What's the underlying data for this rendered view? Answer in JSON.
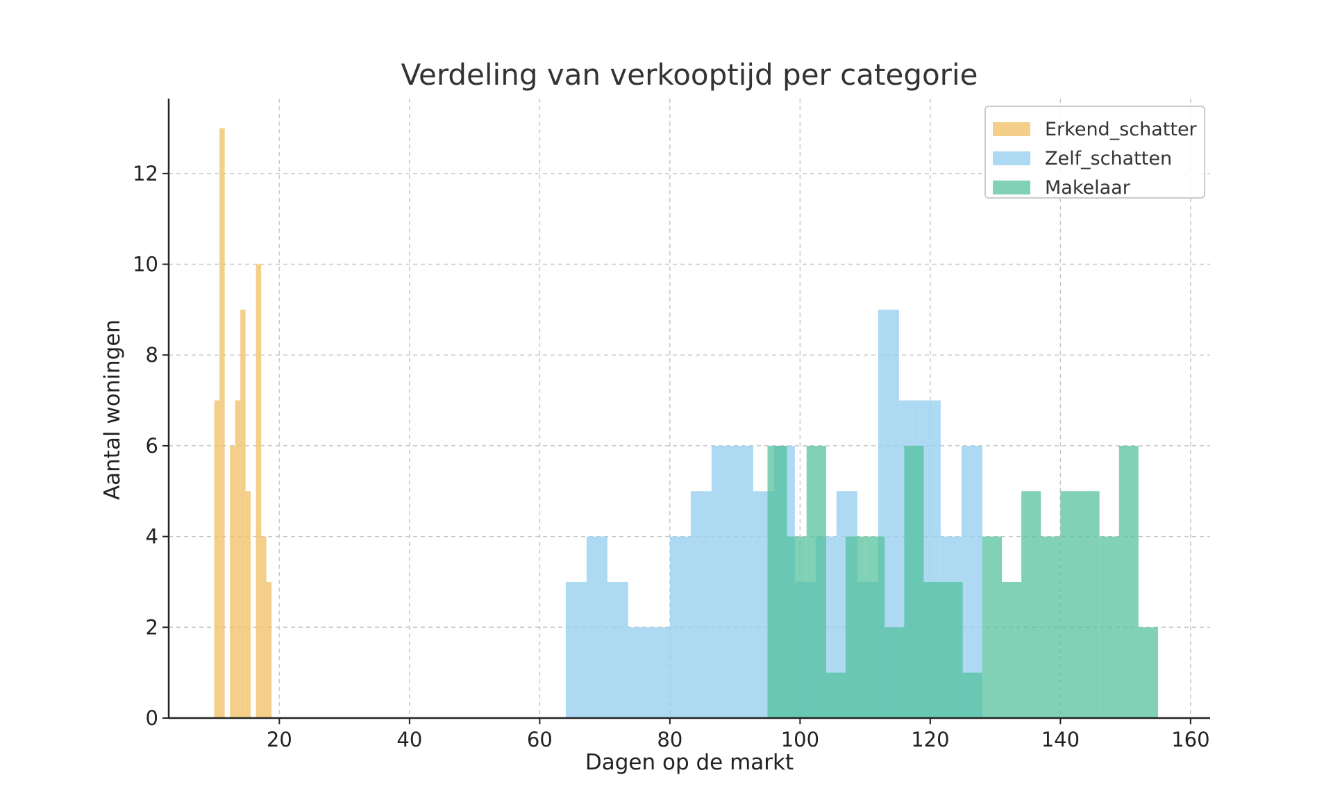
{
  "chart_data": {
    "type": "histogram",
    "title": "Verdeling van verkooptijd per categorie",
    "xlabel": "Dagen op de markt",
    "ylabel": "Aantal woningen",
    "xlim": [
      3,
      163
    ],
    "ylim": [
      0,
      13.65
    ],
    "xticks": [
      20,
      40,
      60,
      80,
      100,
      120,
      140,
      160
    ],
    "yticks": [
      0,
      2,
      4,
      6,
      8,
      10,
      12
    ],
    "grid": true,
    "legend_position": "top-right",
    "series": [
      {
        "name": "Erkend_schatter",
        "color": "#f0c36d",
        "opacity": 0.8,
        "bins": [
          {
            "x0": 10.0,
            "x1": 10.8,
            "count": 7
          },
          {
            "x0": 10.8,
            "x1": 11.6,
            "count": 13
          },
          {
            "x0": 11.6,
            "x1": 12.4,
            "count": 0
          },
          {
            "x0": 12.4,
            "x1": 13.2,
            "count": 6
          },
          {
            "x0": 13.2,
            "x1": 14.0,
            "count": 7
          },
          {
            "x0": 14.0,
            "x1": 14.8,
            "count": 9
          },
          {
            "x0": 14.8,
            "x1": 15.6,
            "count": 5
          },
          {
            "x0": 15.6,
            "x1": 16.4,
            "count": 0
          },
          {
            "x0": 16.4,
            "x1": 17.2,
            "count": 10
          },
          {
            "x0": 17.2,
            "x1": 18.0,
            "count": 4
          },
          {
            "x0": 18.0,
            "x1": 18.8,
            "count": 3
          }
        ]
      },
      {
        "name": "Zelf_schatten",
        "color": "#99d0f0",
        "opacity": 0.8,
        "bins": [
          {
            "x0": 64.0,
            "x1": 67.2,
            "count": 3
          },
          {
            "x0": 67.2,
            "x1": 70.4,
            "count": 4
          },
          {
            "x0": 70.4,
            "x1": 73.6,
            "count": 3
          },
          {
            "x0": 73.6,
            "x1": 76.8,
            "count": 2
          },
          {
            "x0": 76.8,
            "x1": 80.0,
            "count": 2
          },
          {
            "x0": 80.0,
            "x1": 83.2,
            "count": 4
          },
          {
            "x0": 83.2,
            "x1": 86.4,
            "count": 5
          },
          {
            "x0": 86.4,
            "x1": 89.6,
            "count": 6
          },
          {
            "x0": 89.6,
            "x1": 92.8,
            "count": 6
          },
          {
            "x0": 92.8,
            "x1": 96.0,
            "count": 5
          },
          {
            "x0": 96.0,
            "x1": 99.2,
            "count": 6
          },
          {
            "x0": 99.2,
            "x1": 102.4,
            "count": 3
          },
          {
            "x0": 102.4,
            "x1": 105.6,
            "count": 4
          },
          {
            "x0": 105.6,
            "x1": 108.8,
            "count": 5
          },
          {
            "x0": 108.8,
            "x1": 112.0,
            "count": 3
          },
          {
            "x0": 112.0,
            "x1": 115.2,
            "count": 9
          },
          {
            "x0": 115.2,
            "x1": 118.4,
            "count": 7
          },
          {
            "x0": 118.4,
            "x1": 121.6,
            "count": 7
          },
          {
            "x0": 121.6,
            "x1": 124.8,
            "count": 4
          },
          {
            "x0": 124.8,
            "x1": 128.0,
            "count": 6
          }
        ]
      },
      {
        "name": "Makelaar",
        "color": "#4fbf9a",
        "opacity": 0.72,
        "bins": [
          {
            "x0": 95.0,
            "x1": 98.0,
            "count": 6
          },
          {
            "x0": 98.0,
            "x1": 101.0,
            "count": 4
          },
          {
            "x0": 101.0,
            "x1": 104.0,
            "count": 6
          },
          {
            "x0": 104.0,
            "x1": 107.0,
            "count": 1
          },
          {
            "x0": 107.0,
            "x1": 110.0,
            "count": 4
          },
          {
            "x0": 110.0,
            "x1": 113.0,
            "count": 4
          },
          {
            "x0": 113.0,
            "x1": 116.0,
            "count": 2
          },
          {
            "x0": 116.0,
            "x1": 119.0,
            "count": 6
          },
          {
            "x0": 119.0,
            "x1": 122.0,
            "count": 3
          },
          {
            "x0": 122.0,
            "x1": 125.0,
            "count": 3
          },
          {
            "x0": 125.0,
            "x1": 128.0,
            "count": 1
          },
          {
            "x0": 128.0,
            "x1": 131.0,
            "count": 4
          },
          {
            "x0": 131.0,
            "x1": 134.0,
            "count": 3
          },
          {
            "x0": 134.0,
            "x1": 137.0,
            "count": 5
          },
          {
            "x0": 137.0,
            "x1": 140.0,
            "count": 4
          },
          {
            "x0": 140.0,
            "x1": 143.0,
            "count": 5
          },
          {
            "x0": 143.0,
            "x1": 146.0,
            "count": 5
          },
          {
            "x0": 146.0,
            "x1": 149.0,
            "count": 4
          },
          {
            "x0": 149.0,
            "x1": 152.0,
            "count": 6
          },
          {
            "x0": 152.0,
            "x1": 155.0,
            "count": 2
          }
        ]
      }
    ]
  }
}
